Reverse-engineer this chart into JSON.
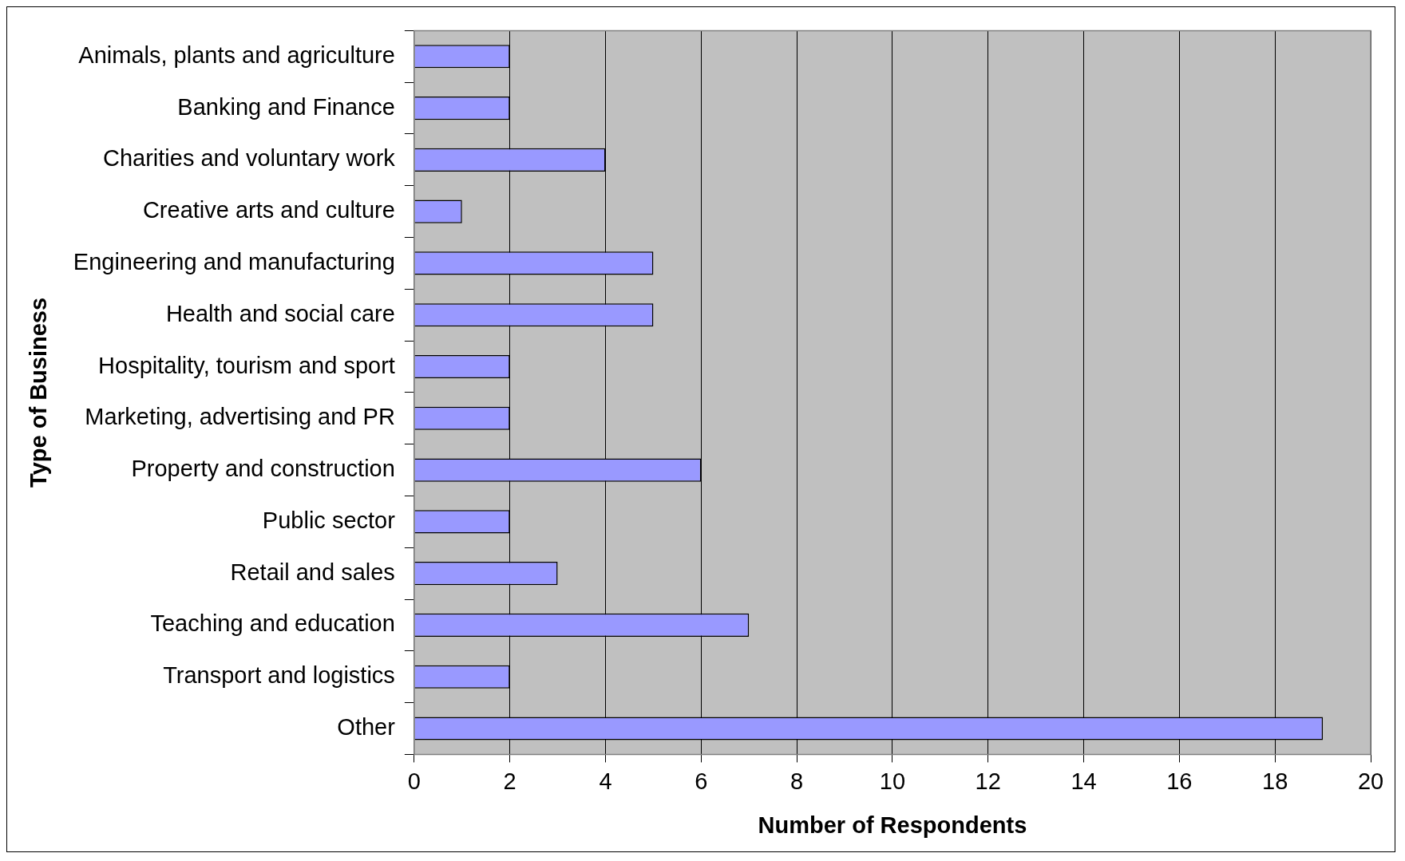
{
  "chart_data": {
    "type": "bar",
    "orientation": "horizontal",
    "xlabel": "Number of Respondents",
    "ylabel": "Type of Business",
    "categories": [
      "Animals, plants and agriculture",
      "Banking and Finance",
      "Charities and voluntary work",
      "Creative arts and culture",
      "Engineering and manufacturing",
      "Health and social care",
      "Hospitality, tourism and sport",
      "Marketing, advertising and PR",
      "Property and construction",
      "Public sector",
      "Retail and sales",
      "Teaching and education",
      "Transport and logistics",
      "Other"
    ],
    "values": [
      2,
      2,
      4,
      1,
      5,
      5,
      2,
      2,
      6,
      2,
      3,
      7,
      2,
      19
    ],
    "color": "#9999ff",
    "xlim": [
      0,
      20
    ],
    "xticks": [
      0,
      2,
      4,
      6,
      8,
      10,
      12,
      14,
      16,
      18,
      20
    ],
    "grid": "x",
    "legend": false
  }
}
